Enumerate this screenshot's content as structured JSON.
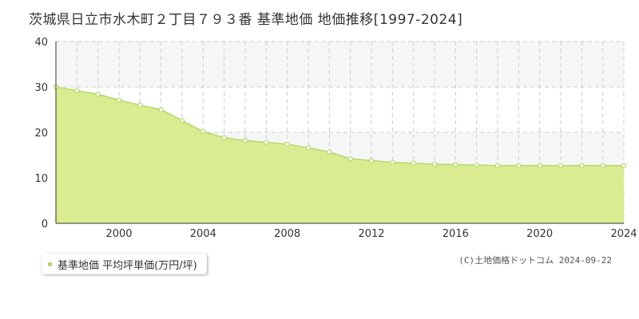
{
  "colors": {
    "line": "#b4d86c",
    "fill": "#daec90",
    "band": "#f7f6f7",
    "grid": "#cccccc",
    "axis": "#333333"
  },
  "copyright": "(C)土地価格ドットコム 2024-09-22",
  "chart_data": {
    "type": "area",
    "title": "茨城県日立市水木町２丁目７９３番 基準地価 地価推移[1997-2024]",
    "xlabel": "",
    "ylabel": "",
    "xlim": [
      1997,
      2024
    ],
    "ylim": [
      0,
      40
    ],
    "x_ticks": [
      2000,
      2004,
      2008,
      2012,
      2016,
      2020,
      2024
    ],
    "y_ticks": [
      0,
      10,
      20,
      30,
      40
    ],
    "grid": true,
    "legend_position": "bottom-left",
    "series": [
      {
        "name": "基準地価 平均坪単価(万円/坪)",
        "x": [
          1997,
          1998,
          1999,
          2000,
          2001,
          2002,
          2003,
          2004,
          2005,
          2006,
          2007,
          2008,
          2009,
          2010,
          2011,
          2012,
          2013,
          2014,
          2015,
          2016,
          2017,
          2018,
          2019,
          2020,
          2021,
          2022,
          2023,
          2024
        ],
        "values": [
          30.0,
          29.2,
          28.4,
          27.1,
          26.0,
          25.0,
          22.6,
          20.2,
          18.8,
          18.2,
          17.8,
          17.4,
          16.6,
          15.7,
          14.2,
          13.8,
          13.4,
          13.2,
          13.0,
          12.9,
          12.8,
          12.7,
          12.7,
          12.7,
          12.7,
          12.7,
          12.7,
          12.7
        ]
      }
    ]
  }
}
